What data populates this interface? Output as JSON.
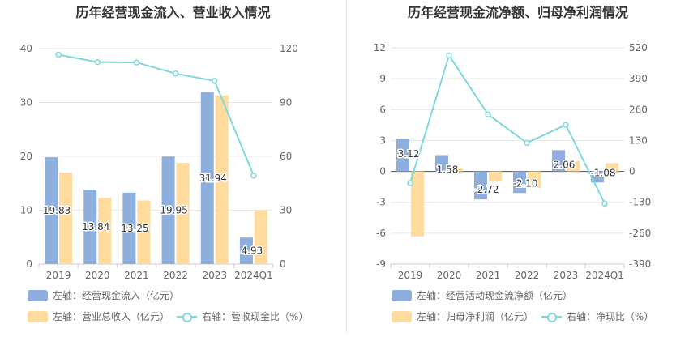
{
  "chart_data": [
    {
      "type": "bar",
      "title": "历年经营现金流入、营业收入情况",
      "categories": [
        "2019",
        "2020",
        "2021",
        "2022",
        "2023",
        "2024Q1"
      ],
      "left_axis": {
        "ticks": [
          "0",
          "10",
          "20",
          "30",
          "40"
        ],
        "ylim": [
          0,
          40
        ]
      },
      "right_axis": {
        "ticks": [
          "0",
          "30",
          "60",
          "90",
          "120"
        ],
        "ylim": [
          0,
          120
        ]
      },
      "series": [
        {
          "name": "左轴：经营现金流入（亿元）",
          "kind": "bar",
          "axis": "left",
          "color": "#8eaedd",
          "values": [
            19.83,
            13.84,
            13.25,
            19.95,
            31.94,
            4.93
          ],
          "labels": [
            "19.83",
            "13.84",
            "13.25",
            "19.95",
            "31.94",
            "4.93"
          ]
        },
        {
          "name": "左轴：营业总收入（亿元）",
          "kind": "bar",
          "axis": "left",
          "color": "#ffdb9d",
          "values": [
            17.0,
            12.3,
            11.8,
            18.8,
            31.3,
            10.0
          ]
        },
        {
          "name": "右轴：营收现金比（%）",
          "kind": "line",
          "axis": "right",
          "color": "#7fd8de",
          "values": [
            116.6,
            112.5,
            112.3,
            106.1,
            102.0,
            49.3
          ]
        }
      ],
      "grid": true,
      "legend": "bottom"
    },
    {
      "type": "bar",
      "title": "历年经营现金流净额、归母净利润情况",
      "categories": [
        "2019",
        "2020",
        "2021",
        "2022",
        "2023",
        "2024Q1"
      ],
      "left_axis": {
        "ticks": [
          "-9",
          "-6",
          "-3",
          "0",
          "3",
          "6",
          "9",
          "12"
        ],
        "ylim": [
          -9,
          12
        ]
      },
      "right_axis": {
        "ticks": [
          "-390",
          "-260",
          "-130",
          "0",
          "130",
          "260",
          "390",
          "520"
        ],
        "ylim": [
          -390,
          520
        ]
      },
      "series": [
        {
          "name": "左轴：经营活动现金流净额（亿元）",
          "kind": "bar",
          "axis": "left",
          "color": "#8eaedd",
          "values": [
            3.12,
            1.58,
            -2.72,
            -2.1,
            2.06,
            -1.08
          ],
          "labels": [
            "3.12",
            "1.58",
            "-2.72",
            "-2.10",
            "2.06",
            "-1.08"
          ]
        },
        {
          "name": "左轴：归母净利润（亿元）",
          "kind": "bar",
          "axis": "left",
          "color": "#ffdb9d",
          "values": [
            -6.3,
            0.3,
            -1.0,
            -1.6,
            1.0,
            0.8
          ]
        },
        {
          "name": "右轴：净现比（%）",
          "kind": "line",
          "axis": "right",
          "color": "#7fd8de",
          "values": [
            -49.5,
            488,
            240,
            120,
            196,
            -135
          ]
        }
      ],
      "grid": true,
      "legend": "bottom"
    }
  ]
}
